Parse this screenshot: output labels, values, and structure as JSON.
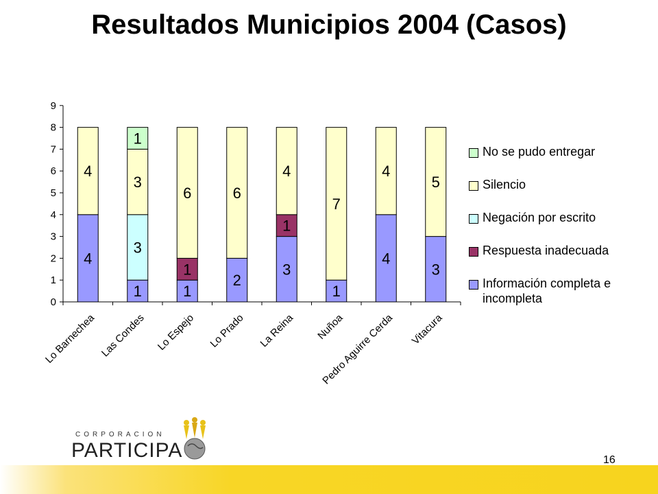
{
  "title": "Resultados Municipios 2004 (Casos)",
  "page_number": "16",
  "logo": {
    "top_text": "CORPORACION",
    "main_text": "PARTICIPA"
  },
  "colors": {
    "no_entregar": "#ccffcc",
    "silencio": "#ffffcc",
    "negacion": "#ccffff",
    "respuesta": "#993366",
    "informacion": "#9999ff",
    "footer": "#f7d41e"
  },
  "chart_data": {
    "type": "bar",
    "stacked": true,
    "categories": [
      "Lo Barnechea",
      "Las Condes",
      "Lo Espejo",
      "Lo Prado",
      "La Reina",
      "Nuñoa",
      "Pedro Aguirre Cerda",
      "Vitacura"
    ],
    "ylim": [
      0,
      9
    ],
    "yticks": [
      0,
      1,
      2,
      3,
      4,
      5,
      6,
      7,
      8,
      9
    ],
    "series": [
      {
        "name": "Información completa e incompleta",
        "color_key": "informacion",
        "values": [
          4,
          1,
          1,
          2,
          3,
          1,
          4,
          3
        ]
      },
      {
        "name": "Respuesta inadecuada",
        "color_key": "respuesta",
        "values": [
          0,
          0,
          1,
          0,
          1,
          0,
          0,
          0
        ]
      },
      {
        "name": "Negación por escrito",
        "color_key": "negacion",
        "values": [
          0,
          3,
          0,
          0,
          0,
          0,
          0,
          0
        ]
      },
      {
        "name": "Silencio",
        "color_key": "silencio",
        "values": [
          4,
          3,
          6,
          6,
          4,
          7,
          4,
          5
        ]
      },
      {
        "name": "No se pudo entregar",
        "color_key": "no_entregar",
        "values": [
          0,
          1,
          0,
          0,
          0,
          0,
          0,
          0
        ]
      }
    ],
    "legend_order": [
      "No se pudo entregar",
      "Silencio",
      "Negación por escrito",
      "Respuesta inadecuada",
      "Información completa e incompleta"
    ],
    "legend_position": "right",
    "grid": false
  }
}
